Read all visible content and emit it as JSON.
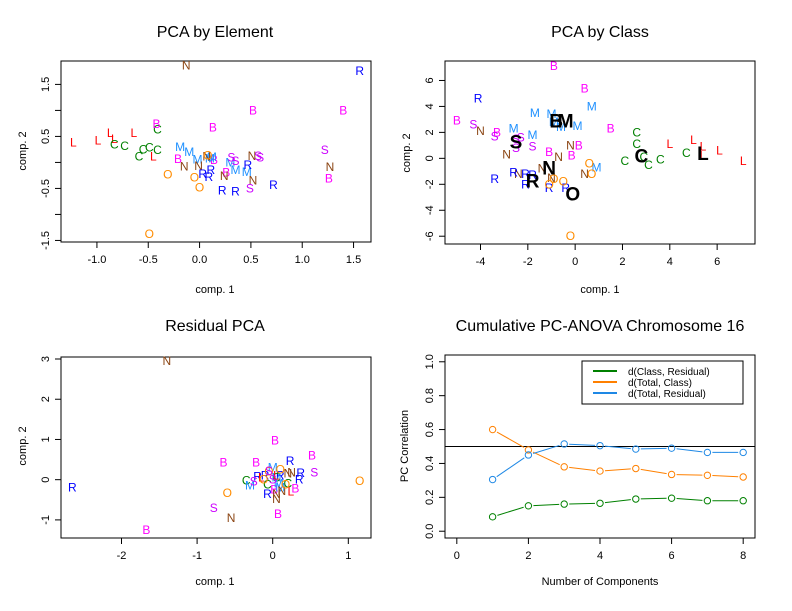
{
  "figure": {
    "colors": {
      "L": "#ff0000",
      "C": "#008000",
      "B": "#ff00ff",
      "M": "#1e90ff",
      "N": "#8b4513",
      "O": "#ff8c00",
      "R": "#0000ff",
      "S": "#cc00ff",
      "centroid": "#000000",
      "refline": "#000000"
    }
  },
  "chart_data": [
    {
      "id": "pca-element",
      "type": "scatter",
      "title": "PCA by Element",
      "xlabel": "comp. 1",
      "ylabel": "comp. 2",
      "xlim": [
        -1.35,
        1.67
      ],
      "ylim": [
        -1.53,
        1.95
      ],
      "xticks": [
        -1.0,
        -0.5,
        0.0,
        0.5,
        1.0,
        1.5
      ],
      "xtick_labels": [
        "-1.0",
        "-0.5",
        "0.0",
        "0.5",
        "1.0",
        "1.5"
      ],
      "yticks": [
        -1.5,
        -1.0,
        -0.5,
        0.0,
        0.5,
        1.0,
        1.5
      ],
      "ytick_labels": [
        "-1.5",
        "",
        "-0.5",
        "",
        "0.5",
        "",
        "1.5"
      ],
      "points": [
        {
          "label": "L",
          "x": -1.23,
          "y": 0.38
        },
        {
          "label": "L",
          "x": -0.99,
          "y": 0.42
        },
        {
          "label": "L",
          "x": -0.87,
          "y": 0.57
        },
        {
          "label": "L",
          "x": -0.64,
          "y": 0.57
        },
        {
          "label": "L",
          "x": -0.45,
          "y": 0.11
        },
        {
          "label": "L",
          "x": -0.83,
          "y": 0.45
        },
        {
          "label": "C",
          "x": -0.83,
          "y": 0.34
        },
        {
          "label": "C",
          "x": -0.73,
          "y": 0.32
        },
        {
          "label": "C",
          "x": -0.55,
          "y": 0.25
        },
        {
          "label": "C",
          "x": -0.49,
          "y": 0.29
        },
        {
          "label": "C",
          "x": -0.41,
          "y": 0.24
        },
        {
          "label": "C",
          "x": -0.59,
          "y": 0.11
        },
        {
          "label": "C",
          "x": -0.41,
          "y": 0.63
        },
        {
          "label": "B",
          "x": -0.42,
          "y": 0.74
        },
        {
          "label": "B",
          "x": 0.13,
          "y": 0.67
        },
        {
          "label": "B",
          "x": 0.52,
          "y": 1.0
        },
        {
          "label": "B",
          "x": 1.4,
          "y": 1.0
        },
        {
          "label": "B",
          "x": -0.21,
          "y": 0.07
        },
        {
          "label": "B",
          "x": 0.14,
          "y": 0.05
        },
        {
          "label": "B",
          "x": 0.26,
          "y": -0.19
        },
        {
          "label": "B",
          "x": 1.26,
          "y": -0.31
        },
        {
          "label": "M",
          "x": -0.19,
          "y": 0.3
        },
        {
          "label": "M",
          "x": -0.1,
          "y": 0.2
        },
        {
          "label": "M",
          "x": -0.02,
          "y": 0.06
        },
        {
          "label": "M",
          "x": 0.1,
          "y": 0.08
        },
        {
          "label": "M",
          "x": 0.3,
          "y": 0.0
        },
        {
          "label": "M",
          "x": 0.35,
          "y": -0.15
        },
        {
          "label": "M",
          "x": 0.46,
          "y": -0.18
        },
        {
          "label": "M",
          "x": 0.12,
          "y": 0.1
        },
        {
          "label": "N",
          "x": -0.13,
          "y": 1.86
        },
        {
          "label": "N",
          "x": -0.15,
          "y": -0.08
        },
        {
          "label": "N",
          "x": -0.01,
          "y": -0.07
        },
        {
          "label": "N",
          "x": 0.07,
          "y": 0.11
        },
        {
          "label": "N",
          "x": 0.24,
          "y": -0.26
        },
        {
          "label": "N",
          "x": 0.51,
          "y": 0.12
        },
        {
          "label": "N",
          "x": 0.52,
          "y": -0.35
        },
        {
          "label": "N",
          "x": 1.27,
          "y": -0.09
        },
        {
          "label": "O",
          "x": -0.31,
          "y": -0.23
        },
        {
          "label": "O",
          "x": -0.05,
          "y": -0.29
        },
        {
          "label": "O",
          "x": 0.0,
          "y": -0.48
        },
        {
          "label": "O",
          "x": 0.08,
          "y": 0.13
        },
        {
          "label": "O",
          "x": -0.49,
          "y": -1.38
        },
        {
          "label": "R",
          "x": 0.03,
          "y": -0.22
        },
        {
          "label": "R",
          "x": 0.11,
          "y": -0.15
        },
        {
          "label": "R",
          "x": 0.09,
          "y": -0.28
        },
        {
          "label": "R",
          "x": 0.22,
          "y": -0.54
        },
        {
          "label": "R",
          "x": 0.35,
          "y": -0.56
        },
        {
          "label": "R",
          "x": 0.47,
          "y": -0.05
        },
        {
          "label": "R",
          "x": 0.72,
          "y": -0.43
        },
        {
          "label": "R",
          "x": 1.56,
          "y": 1.76
        },
        {
          "label": "S",
          "x": 0.31,
          "y": 0.09
        },
        {
          "label": "S",
          "x": 0.35,
          "y": 0.03
        },
        {
          "label": "S",
          "x": 0.57,
          "y": 0.12
        },
        {
          "label": "S",
          "x": 0.59,
          "y": 0.09
        },
        {
          "label": "S",
          "x": 0.49,
          "y": -0.5
        },
        {
          "label": "S",
          "x": 1.22,
          "y": 0.24
        }
      ]
    },
    {
      "id": "pca-class",
      "type": "scatter",
      "title": "PCA by Class",
      "xlabel": "comp. 1",
      "ylabel": "comp. 2",
      "xlim": [
        -5.5,
        7.6
      ],
      "ylim": [
        -6.6,
        7.5
      ],
      "xticks": [
        -4,
        -2,
        0,
        2,
        4,
        6
      ],
      "xtick_labels": [
        "-4",
        "-2",
        "0",
        "2",
        "4",
        "6"
      ],
      "yticks": [
        -6,
        -4,
        -2,
        0,
        2,
        4,
        6
      ],
      "ytick_labels": [
        "-6",
        "-4",
        "-2",
        "0",
        "2",
        "4",
        "6"
      ],
      "points": [
        {
          "label": "B",
          "x": -5.0,
          "y": 2.9
        },
        {
          "label": "B",
          "x": -0.9,
          "y": 7.1
        },
        {
          "label": "B",
          "x": 0.4,
          "y": 5.4
        },
        {
          "label": "B",
          "x": -3.3,
          "y": 2.0
        },
        {
          "label": "B",
          "x": 1.5,
          "y": 2.3
        },
        {
          "label": "B",
          "x": -1.1,
          "y": 0.5
        },
        {
          "label": "B",
          "x": 0.15,
          "y": 1.0
        },
        {
          "label": "B",
          "x": -0.15,
          "y": 0.2
        },
        {
          "label": "S",
          "x": -4.3,
          "y": 2.6
        },
        {
          "label": "S",
          "x": -3.4,
          "y": 1.7
        },
        {
          "label": "S",
          "x": -2.5,
          "y": 1.5
        },
        {
          "label": "S",
          "x": -2.3,
          "y": 1.6
        },
        {
          "label": "S",
          "x": -1.8,
          "y": 0.9
        },
        {
          "label": "S",
          "x": -2.5,
          "y": 0.8
        },
        {
          "label": "N",
          "x": -4.0,
          "y": 2.1
        },
        {
          "label": "N",
          "x": -2.9,
          "y": 0.3
        },
        {
          "label": "N",
          "x": -2.4,
          "y": -1.2
        },
        {
          "label": "N",
          "x": -1.4,
          "y": -0.8
        },
        {
          "label": "N",
          "x": -0.7,
          "y": 0.1
        },
        {
          "label": "N",
          "x": -0.2,
          "y": 1.0
        },
        {
          "label": "N",
          "x": -1.0,
          "y": -1.5
        },
        {
          "label": "N",
          "x": 0.4,
          "y": -1.2
        },
        {
          "label": "M",
          "x": -1.7,
          "y": 3.5
        },
        {
          "label": "M",
          "x": -1.0,
          "y": 3.4
        },
        {
          "label": "M",
          "x": -2.6,
          "y": 2.3
        },
        {
          "label": "M",
          "x": -1.8,
          "y": 1.8
        },
        {
          "label": "M",
          "x": -0.6,
          "y": 2.4
        },
        {
          "label": "M",
          "x": 0.1,
          "y": 2.5
        },
        {
          "label": "M",
          "x": 0.7,
          "y": 4.0
        },
        {
          "label": "M",
          "x": 0.9,
          "y": -0.7
        },
        {
          "label": "M",
          "x": -0.9,
          "y": 2.8
        },
        {
          "label": "R",
          "x": -4.1,
          "y": 4.6
        },
        {
          "label": "R",
          "x": -3.4,
          "y": -1.6
        },
        {
          "label": "R",
          "x": -2.6,
          "y": -1.1
        },
        {
          "label": "R",
          "x": -2.1,
          "y": -1.2
        },
        {
          "label": "R",
          "x": -2.1,
          "y": -2.0
        },
        {
          "label": "R",
          "x": -1.1,
          "y": -2.3
        },
        {
          "label": "R",
          "x": -0.4,
          "y": -2.3
        },
        {
          "label": "R",
          "x": -1.8,
          "y": -1.3
        },
        {
          "label": "O",
          "x": 0.6,
          "y": -0.4
        },
        {
          "label": "O",
          "x": 0.7,
          "y": -1.2
        },
        {
          "label": "O",
          "x": -0.5,
          "y": -1.8
        },
        {
          "label": "O",
          "x": -1.1,
          "y": -2.0
        },
        {
          "label": "O",
          "x": -0.2,
          "y": -6.0
        },
        {
          "label": "O",
          "x": -0.9,
          "y": -1.6
        },
        {
          "label": "C",
          "x": 2.6,
          "y": 2.0
        },
        {
          "label": "C",
          "x": 2.6,
          "y": 1.1
        },
        {
          "label": "C",
          "x": 2.1,
          "y": -0.2
        },
        {
          "label": "C",
          "x": 2.9,
          "y": 0.1
        },
        {
          "label": "C",
          "x": 3.1,
          "y": -0.5
        },
        {
          "label": "C",
          "x": 3.6,
          "y": -0.1
        },
        {
          "label": "C",
          "x": 4.7,
          "y": 0.4
        },
        {
          "label": "L",
          "x": 4.0,
          "y": 1.1
        },
        {
          "label": "L",
          "x": 5.0,
          "y": 1.4
        },
        {
          "label": "L",
          "x": 5.4,
          "y": 0.2
        },
        {
          "label": "L",
          "x": 6.1,
          "y": 0.6
        },
        {
          "label": "L",
          "x": 7.1,
          "y": -0.2
        },
        {
          "label": "L",
          "x": 5.4,
          "y": 0.9
        }
      ],
      "centroids": [
        {
          "label": "B",
          "x": -0.8,
          "y": 2.9
        },
        {
          "label": "M",
          "x": -0.4,
          "y": 2.9
        },
        {
          "label": "S",
          "x": -2.5,
          "y": 1.3
        },
        {
          "label": "N",
          "x": -1.1,
          "y": -0.7
        },
        {
          "label": "R",
          "x": -1.8,
          "y": -1.7
        },
        {
          "label": "O",
          "x": -0.1,
          "y": -2.7
        },
        {
          "label": "C",
          "x": 2.8,
          "y": 0.2
        },
        {
          "label": "L",
          "x": 5.4,
          "y": 0.4
        }
      ]
    },
    {
      "id": "residual-pca",
      "type": "scatter",
      "title": "Residual PCA",
      "xlabel": "comp. 1",
      "ylabel": "comp. 2",
      "xlim": [
        -2.8,
        1.3
      ],
      "ylim": [
        -1.45,
        3.05
      ],
      "xticks": [
        -2,
        -1,
        0,
        1
      ],
      "xtick_labels": [
        "-2",
        "-1",
        "0",
        "1"
      ],
      "yticks": [
        -1,
        0,
        1,
        2,
        3
      ],
      "ytick_labels": [
        "-1",
        "0",
        "1",
        "2",
        "3"
      ],
      "points": [
        {
          "label": "N",
          "x": -1.4,
          "y": 2.95
        },
        {
          "label": "R",
          "x": -2.65,
          "y": -0.2
        },
        {
          "label": "B",
          "x": -1.67,
          "y": -1.25
        },
        {
          "label": "S",
          "x": -0.78,
          "y": -0.7
        },
        {
          "label": "N",
          "x": -0.55,
          "y": -0.95
        },
        {
          "label": "O",
          "x": -0.6,
          "y": -0.33
        },
        {
          "label": "B",
          "x": -0.65,
          "y": 0.43
        },
        {
          "label": "B",
          "x": -0.22,
          "y": 0.43
        },
        {
          "label": "B",
          "x": 0.03,
          "y": 0.97
        },
        {
          "label": "B",
          "x": 0.52,
          "y": 0.6
        },
        {
          "label": "S",
          "x": 0.55,
          "y": 0.18
        },
        {
          "label": "O",
          "x": 1.15,
          "y": -0.03
        },
        {
          "label": "B",
          "x": 0.07,
          "y": -0.85
        },
        {
          "label": "B",
          "x": 0.3,
          "y": -0.22
        },
        {
          "label": "B",
          "x": 0.02,
          "y": -0.24
        },
        {
          "label": "R",
          "x": 0.23,
          "y": 0.47
        },
        {
          "label": "R",
          "x": 0.37,
          "y": 0.16
        },
        {
          "label": "R",
          "x": 0.35,
          "y": 0.0
        },
        {
          "label": "R",
          "x": -0.07,
          "y": -0.35
        },
        {
          "label": "R",
          "x": -0.2,
          "y": 0.08
        },
        {
          "label": "R",
          "x": -0.1,
          "y": 0.1
        },
        {
          "label": "R",
          "x": 0.1,
          "y": 0.1
        },
        {
          "label": "C",
          "x": -0.35,
          "y": -0.02
        },
        {
          "label": "C",
          "x": -0.07,
          "y": -0.12
        },
        {
          "label": "C",
          "x": 0.2,
          "y": -0.1
        },
        {
          "label": "C",
          "x": 0.05,
          "y": 0.05
        },
        {
          "label": "M",
          "x": -0.3,
          "y": -0.15
        },
        {
          "label": "M",
          "x": 0.0,
          "y": 0.3
        },
        {
          "label": "M",
          "x": 0.05,
          "y": 0.05
        },
        {
          "label": "M",
          "x": 0.08,
          "y": -0.1
        },
        {
          "label": "M",
          "x": 0.1,
          "y": -0.2
        },
        {
          "label": "N",
          "x": 0.2,
          "y": 0.15
        },
        {
          "label": "N",
          "x": 0.25,
          "y": 0.18
        },
        {
          "label": "N",
          "x": 0.05,
          "y": -0.35
        },
        {
          "label": "N",
          "x": 0.05,
          "y": -0.48
        },
        {
          "label": "N",
          "x": 0.12,
          "y": -0.28
        },
        {
          "label": "L",
          "x": -0.15,
          "y": 0.05
        },
        {
          "label": "L",
          "x": 0.24,
          "y": -0.3
        },
        {
          "label": "L",
          "x": 0.05,
          "y": 0.1
        },
        {
          "label": "O",
          "x": -0.05,
          "y": 0.2
        },
        {
          "label": "O",
          "x": 0.1,
          "y": 0.25
        },
        {
          "label": "O",
          "x": 0.17,
          "y": -0.12
        },
        {
          "label": "O",
          "x": -0.12,
          "y": 0.0
        },
        {
          "label": "S",
          "x": -0.05,
          "y": 0.22
        },
        {
          "label": "S",
          "x": -0.25,
          "y": -0.05
        },
        {
          "label": "S",
          "x": 0.0,
          "y": 0.0
        }
      ]
    },
    {
      "id": "cumulative-pc-anova",
      "type": "line",
      "title": "Cumulative PC-ANOVA Chromosome 16",
      "xlabel": "Number of Components",
      "ylabel": "PC Correlation",
      "xlim": [
        -0.33,
        8.33
      ],
      "ylim": [
        -0.04,
        1.04
      ],
      "xticks": [
        0,
        2,
        4,
        6,
        8
      ],
      "xtick_labels": [
        "0",
        "2",
        "4",
        "6",
        "8"
      ],
      "yticks": [
        0.0,
        0.2,
        0.4,
        0.6,
        0.8,
        1.0
      ],
      "ytick_labels": [
        "0.0",
        "0.2",
        "0.4",
        "0.6",
        "0.8",
        "1.0"
      ],
      "x": [
        1,
        2,
        3,
        4,
        5,
        6,
        7,
        8
      ],
      "hline": 0.5,
      "legend_position": "top-right",
      "series": [
        {
          "name": "d(Class, Residual)",
          "color": "#008000",
          "values": [
            0.085,
            0.15,
            0.16,
            0.165,
            0.19,
            0.195,
            0.18,
            0.18
          ]
        },
        {
          "name": "d(Total, Class)",
          "color": "#ff8000",
          "values": [
            0.6,
            0.48,
            0.38,
            0.355,
            0.37,
            0.335,
            0.33,
            0.32
          ]
        },
        {
          "name": "d(Total, Residual)",
          "color": "#1e88e5",
          "values": [
            0.305,
            0.45,
            0.515,
            0.505,
            0.485,
            0.49,
            0.465,
            0.465
          ]
        }
      ]
    }
  ]
}
